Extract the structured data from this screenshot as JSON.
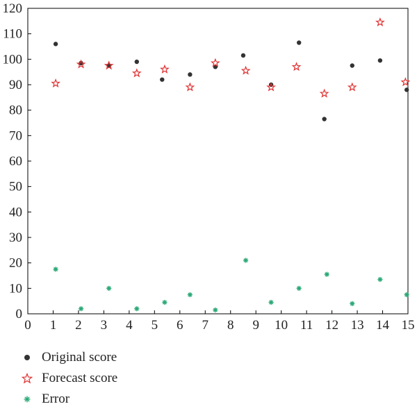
{
  "chart_data": {
    "type": "scatter",
    "xlim": [
      0,
      15
    ],
    "ylim": [
      0,
      120
    ],
    "x_ticks": [
      "0",
      "1",
      "2",
      "3",
      "4",
      "5",
      "6",
      "7",
      "8",
      "9",
      "10",
      "11",
      "12",
      "13",
      "14",
      "15"
    ],
    "y_ticks": [
      "0",
      "10",
      "20",
      "30",
      "40",
      "50",
      "60",
      "70",
      "80",
      "90",
      "100",
      "110",
      "120"
    ],
    "grid": false,
    "legend_position": "bottom",
    "series": [
      {
        "name": "Original score",
        "marker": "circle",
        "color": "#333333",
        "points": [
          [
            1.1,
            106
          ],
          [
            2.1,
            98.5
          ],
          [
            3.2,
            97.5
          ],
          [
            4.3,
            99
          ],
          [
            5.3,
            92
          ],
          [
            6.4,
            94
          ],
          [
            7.4,
            97
          ],
          [
            8.5,
            101.5
          ],
          [
            9.6,
            90
          ],
          [
            10.7,
            106.5
          ],
          [
            11.7,
            76.5
          ],
          [
            12.8,
            97.5
          ],
          [
            13.9,
            99.5
          ],
          [
            14.95,
            88
          ]
        ]
      },
      {
        "name": "Forecast score",
        "marker": "star",
        "color": "#e03030",
        "points": [
          [
            1.1,
            90.5
          ],
          [
            2.1,
            98
          ],
          [
            3.2,
            97.5
          ],
          [
            4.3,
            94.5
          ],
          [
            5.4,
            96
          ],
          [
            6.4,
            89
          ],
          [
            7.4,
            98.5
          ],
          [
            8.6,
            95.5
          ],
          [
            9.6,
            89
          ],
          [
            10.6,
            97
          ],
          [
            11.7,
            86.5
          ],
          [
            12.8,
            89
          ],
          [
            13.9,
            114.5
          ],
          [
            14.9,
            91
          ]
        ]
      },
      {
        "name": "Error",
        "marker": "asterisk",
        "color": "#2aa876",
        "points": [
          [
            1.1,
            17.5
          ],
          [
            2.1,
            2
          ],
          [
            3.2,
            10
          ],
          [
            4.3,
            2
          ],
          [
            5.4,
            4.5
          ],
          [
            6.4,
            7.5
          ],
          [
            7.4,
            1.5
          ],
          [
            8.6,
            21
          ],
          [
            9.6,
            4.5
          ],
          [
            10.7,
            10
          ],
          [
            11.8,
            15.5
          ],
          [
            12.8,
            4
          ],
          [
            13.9,
            13.5
          ],
          [
            14.95,
            7.5
          ]
        ]
      }
    ]
  }
}
